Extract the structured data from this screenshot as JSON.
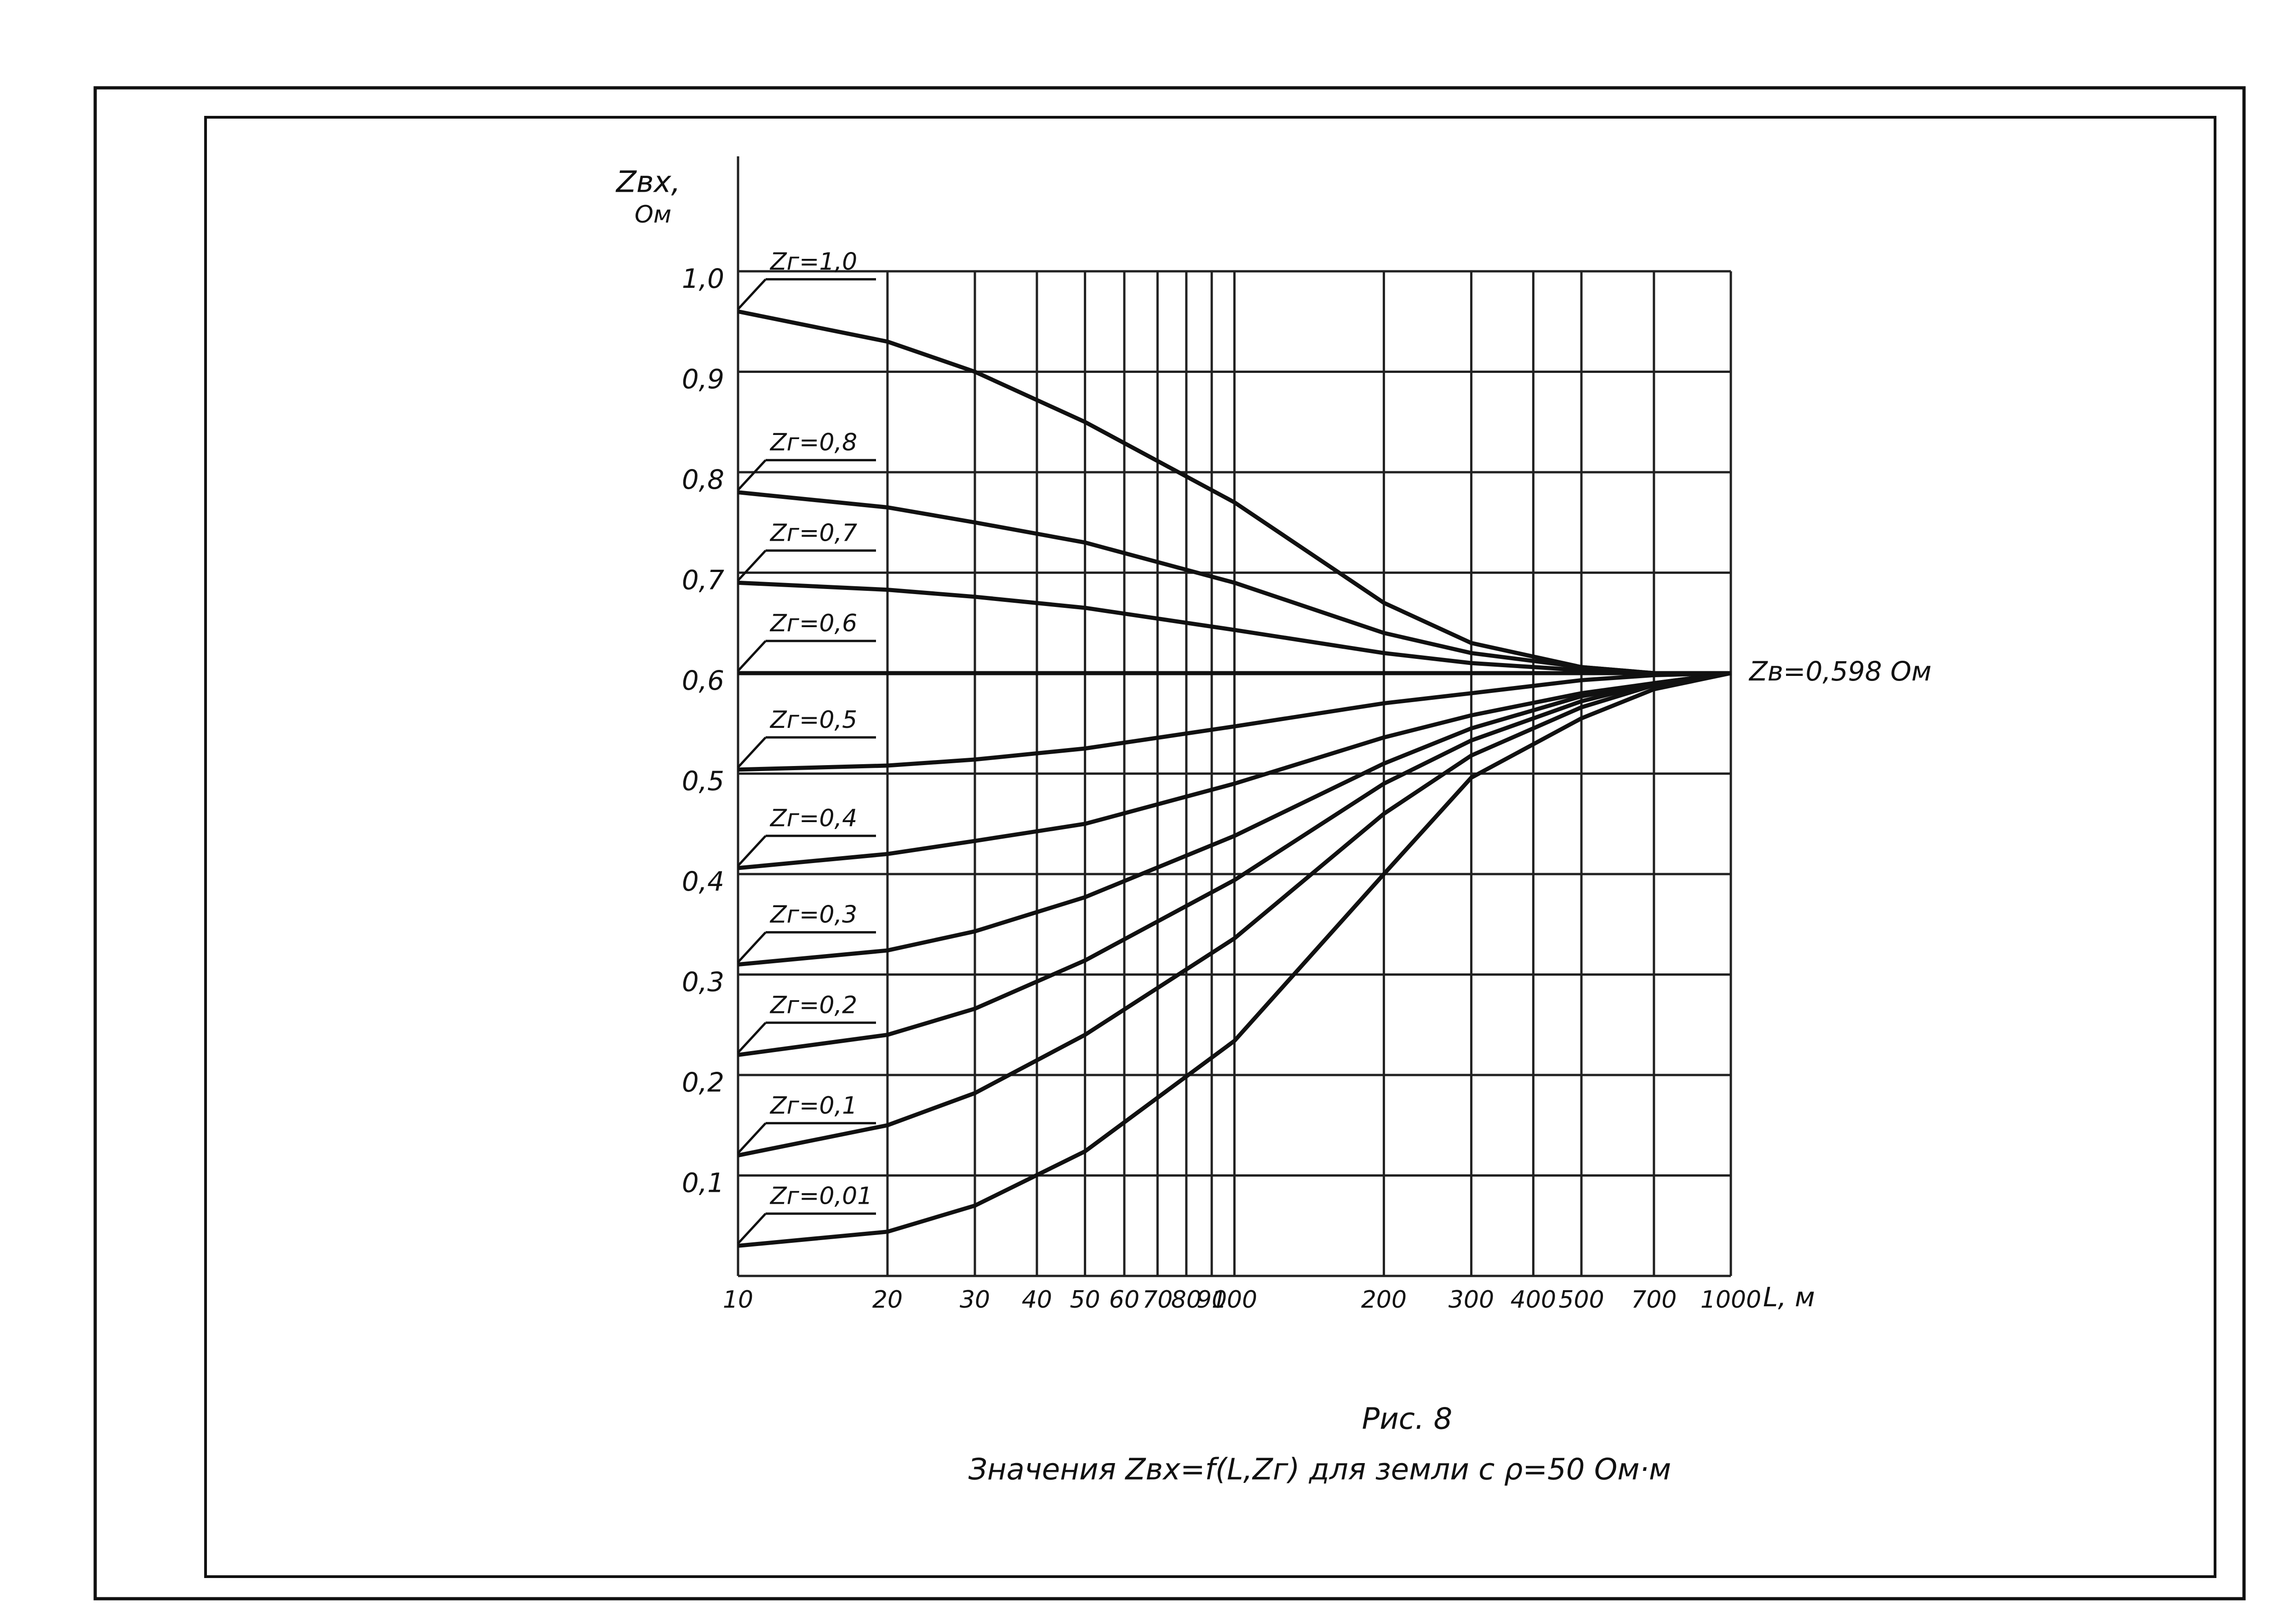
{
  "chart_data": {
    "type": "line",
    "y_label": "Zвх,",
    "y_unit": "Ом",
    "x_label": "L, м",
    "figure_label": "Рис. 8",
    "caption": "Значения Zвх=f(L,Zг) для земли с ρ=50 Ом·м",
    "annotation": "Zв=0,598 Ом",
    "x_log": true,
    "grid": true,
    "x": [
      10,
      20,
      30,
      50,
      100,
      200,
      300,
      500,
      700,
      1000
    ],
    "series": [
      {
        "name": "Zг=1,0",
        "color": "#111111",
        "values": [
          0.96,
          0.93,
          0.9,
          0.85,
          0.77,
          0.67,
          0.63,
          0.606,
          0.6,
          0.6
        ]
      },
      {
        "name": "Zг=0,8",
        "color": "#111111",
        "values": [
          0.78,
          0.765,
          0.75,
          0.73,
          0.69,
          0.64,
          0.62,
          0.606,
          0.6,
          0.6
        ]
      },
      {
        "name": "Zг=0,7",
        "color": "#111111",
        "values": [
          0.69,
          0.683,
          0.676,
          0.665,
          0.643,
          0.62,
          0.61,
          0.603,
          0.6,
          0.6
        ]
      },
      {
        "name": "Zг=0,6",
        "color": "#111111",
        "values": [
          0.6,
          0.6,
          0.6,
          0.6,
          0.6,
          0.6,
          0.6,
          0.6,
          0.6,
          0.6
        ]
      },
      {
        "name": "Zг=0,5",
        "color": "#111111",
        "values": [
          0.504,
          0.508,
          0.514,
          0.525,
          0.547,
          0.57,
          0.58,
          0.593,
          0.598,
          0.6
        ]
      },
      {
        "name": "Zг=0,4",
        "color": "#111111",
        "values": [
          0.406,
          0.42,
          0.433,
          0.45,
          0.49,
          0.536,
          0.558,
          0.58,
          0.59,
          0.6
        ]
      },
      {
        "name": "Zг=0,3",
        "color": "#111111",
        "values": [
          0.31,
          0.324,
          0.343,
          0.377,
          0.438,
          0.51,
          0.545,
          0.577,
          0.59,
          0.6
        ]
      },
      {
        "name": "Zг=0,2",
        "color": "#111111",
        "values": [
          0.22,
          0.24,
          0.266,
          0.314,
          0.394,
          0.49,
          0.533,
          0.572,
          0.59,
          0.6
        ]
      },
      {
        "name": "Zг=0,1",
        "color": "#111111",
        "values": [
          0.12,
          0.15,
          0.182,
          0.24,
          0.336,
          0.46,
          0.518,
          0.566,
          0.588,
          0.6
        ]
      },
      {
        "name": "Zг=0,01",
        "color": "#111111",
        "values": [
          0.03,
          0.044,
          0.07,
          0.124,
          0.234,
          0.4,
          0.496,
          0.555,
          0.584,
          0.6
        ]
      }
    ],
    "xlim": [
      10,
      1000
    ],
    "xticks": [
      10,
      20,
      30,
      40,
      50,
      60,
      70,
      80,
      90,
      100,
      200,
      300,
      400,
      500,
      700,
      1000
    ],
    "ylim": [
      0,
      1.0
    ],
    "yticks": [
      {
        "value": 0.1,
        "label": "0,1"
      },
      {
        "value": 0.2,
        "label": "0,2"
      },
      {
        "value": 0.3,
        "label": "0,3"
      },
      {
        "value": 0.4,
        "label": "0,4"
      },
      {
        "value": 0.5,
        "label": "0,5"
      },
      {
        "value": 0.6,
        "label": "0,6"
      },
      {
        "value": 0.7,
        "label": "0,7"
      },
      {
        "value": 0.8,
        "label": "0,8"
      },
      {
        "value": 0.9,
        "label": "0,9"
      },
      {
        "value": 1.0,
        "label": "1,0"
      }
    ]
  }
}
